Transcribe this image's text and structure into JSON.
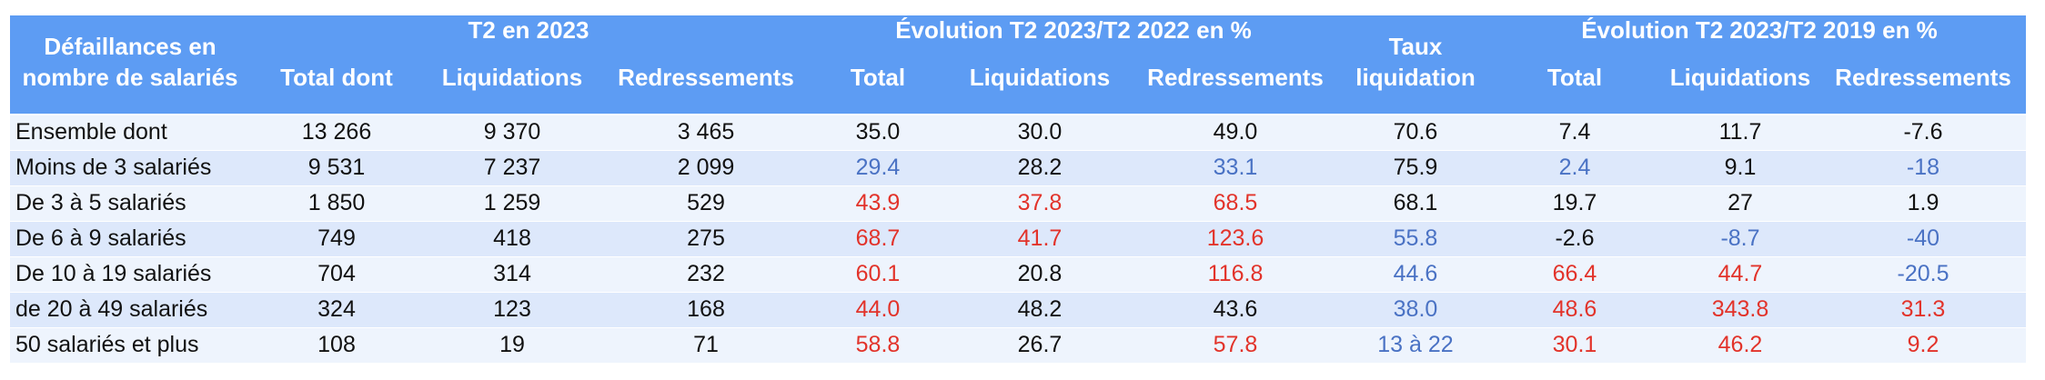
{
  "table": {
    "palette": {
      "black": "#111111",
      "blue": "#4a72c4",
      "red": "#e2332a"
    },
    "header": {
      "stub": [
        "Défaillances en",
        "nombre de salariés"
      ],
      "groups": [
        "T2 en 2023",
        "Évolution T2 2023/T2 2022 en %",
        "Évolution T2 2023/T2 2019 en %"
      ],
      "columns": [
        [
          "Total dont"
        ],
        [
          "Liquidations"
        ],
        [
          "Redressements"
        ],
        [
          "Total"
        ],
        [
          "Liquidations"
        ],
        [
          "Redressements"
        ],
        [
          "Taux",
          "liquidation"
        ],
        [
          "Total"
        ],
        [
          "Liquidations"
        ],
        [
          "Redressements"
        ]
      ]
    },
    "rows": [
      {
        "label": "Ensemble dont",
        "cells": [
          "13 266",
          "9 370",
          "3 465",
          "35.0",
          "30.0",
          "49.0",
          "70.6",
          "7.4",
          "11.7",
          "-7.6"
        ],
        "tones": [
          "black",
          "black",
          "black",
          "black",
          "black",
          "black",
          "black",
          "black",
          "black",
          "black"
        ]
      },
      {
        "label": "Moins de 3 salariés",
        "cells": [
          "9 531",
          "7 237",
          "2 099",
          "29.4",
          "28.2",
          "33.1",
          "75.9",
          "2.4",
          "9.1",
          "-18"
        ],
        "tones": [
          "black",
          "black",
          "black",
          "blue",
          "black",
          "blue",
          "black",
          "blue",
          "black",
          "blue"
        ]
      },
      {
        "label": "De 3 à 5 salariés",
        "cells": [
          "1 850",
          "1 259",
          "529",
          "43.9",
          "37.8",
          "68.5",
          "68.1",
          "19.7",
          "27",
          "1.9"
        ],
        "tones": [
          "black",
          "black",
          "black",
          "red",
          "red",
          "red",
          "black",
          "black",
          "black",
          "black"
        ]
      },
      {
        "label": "De 6 à 9 salariés",
        "cells": [
          "749",
          "418",
          "275",
          "68.7",
          "41.7",
          "123.6",
          "55.8",
          "-2.6",
          "-8.7",
          "-40"
        ],
        "tones": [
          "black",
          "black",
          "black",
          "red",
          "red",
          "red",
          "blue",
          "black",
          "blue",
          "blue"
        ]
      },
      {
        "label": "De 10 à 19 salariés",
        "cells": [
          "704",
          "314",
          "232",
          "60.1",
          "20.8",
          "116.8",
          "44.6",
          "66.4",
          "44.7",
          "-20.5"
        ],
        "tones": [
          "black",
          "black",
          "black",
          "red",
          "black",
          "red",
          "blue",
          "red",
          "red",
          "blue"
        ]
      },
      {
        "label": "de 20 à 49 salariés",
        "cells": [
          "324",
          "123",
          "168",
          "44.0",
          "48.2",
          "43.6",
          "38.0",
          "48.6",
          "343.8",
          "31.3"
        ],
        "tones": [
          "black",
          "black",
          "black",
          "red",
          "black",
          "black",
          "blue",
          "red",
          "red",
          "red"
        ]
      },
      {
        "label": "50 salariés et plus",
        "cells": [
          "108",
          "19",
          "71",
          "58.8",
          "26.7",
          "57.8",
          "13 à 22",
          "30.1",
          "46.2",
          "9.2"
        ],
        "tones": [
          "black",
          "black",
          "black",
          "red",
          "black",
          "red",
          "blue",
          "red",
          "red",
          "red"
        ]
      }
    ]
  }
}
